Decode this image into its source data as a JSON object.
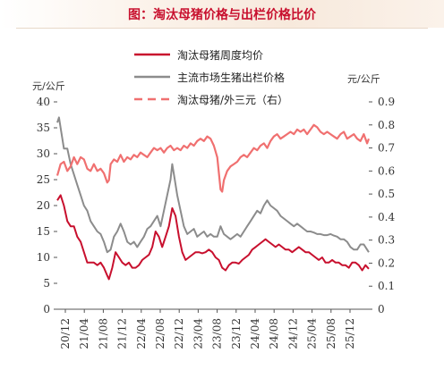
{
  "header": {
    "title": "图：淘汰母猪价格与出栏价格比价"
  },
  "chart_data": {
    "type": "line",
    "title": "图：淘汰母猪价格与出栏价格比价",
    "left_unit": "元/公斤",
    "right_unit": "元/公斤",
    "xlabel": "",
    "ylabel": "元/公斤",
    "ylim": [
      0,
      40
    ],
    "y2lim": [
      0,
      0.9
    ],
    "yticks": [
      "0",
      "5",
      "10",
      "15",
      "20",
      "25",
      "30",
      "35",
      "40"
    ],
    "y2ticks": [
      "0",
      "0.1",
      "0.2",
      "0.3",
      "0.4",
      "0.5",
      "0.6",
      "0.7",
      "0.8",
      "0.9"
    ],
    "xticks": [
      "20/12",
      "21/04",
      "21/08",
      "21/12",
      "22/04",
      "22/08",
      "22/12",
      "23/04",
      "23/08",
      "23/12",
      "24/04",
      "24/08",
      "24/12",
      "25/04",
      "25/08",
      "25/12"
    ],
    "legend_position": "top-center",
    "grid": false,
    "colors": {
      "sow": "#c8102e",
      "hog": "#8c8c8c",
      "ratio": "#f07070"
    },
    "series": [
      {
        "name": "淘汰母猪周度均价",
        "axis": "left",
        "style": "solid",
        "color": "#c8102e",
        "points": [
          [
            0,
            21
          ],
          [
            2,
            22
          ],
          [
            4,
            20
          ],
          [
            6,
            17
          ],
          [
            8,
            16
          ],
          [
            10,
            16
          ],
          [
            12,
            14
          ],
          [
            14,
            13
          ],
          [
            16,
            11
          ],
          [
            18,
            9
          ],
          [
            20,
            9
          ],
          [
            22,
            9
          ],
          [
            24,
            8.5
          ],
          [
            26,
            9
          ],
          [
            28,
            8
          ],
          [
            30,
            6.5
          ],
          [
            31,
            5.8
          ],
          [
            33,
            8
          ],
          [
            35,
            11
          ],
          [
            37,
            10
          ],
          [
            39,
            9
          ],
          [
            41,
            8.5
          ],
          [
            43,
            9
          ],
          [
            45,
            8
          ],
          [
            47,
            8
          ],
          [
            49,
            8.5
          ],
          [
            51,
            9.5
          ],
          [
            53,
            10
          ],
          [
            55,
            10.5
          ],
          [
            57,
            12
          ],
          [
            59,
            15
          ],
          [
            61,
            14
          ],
          [
            63,
            12
          ],
          [
            65,
            14
          ],
          [
            67,
            16
          ],
          [
            69,
            19.5
          ],
          [
            71,
            18
          ],
          [
            73,
            14
          ],
          [
            75,
            11
          ],
          [
            77,
            9.5
          ],
          [
            79,
            10
          ],
          [
            81,
            10.5
          ],
          [
            83,
            11
          ],
          [
            85,
            11
          ],
          [
            87,
            10.8
          ],
          [
            89,
            11
          ],
          [
            91,
            11.5
          ],
          [
            93,
            11
          ],
          [
            95,
            10
          ],
          [
            97,
            9.5
          ],
          [
            99,
            8
          ],
          [
            101,
            7.5
          ],
          [
            103,
            8.5
          ],
          [
            105,
            9
          ],
          [
            107,
            9
          ],
          [
            109,
            8.8
          ],
          [
            111,
            9.5
          ],
          [
            113,
            10
          ],
          [
            115,
            10.5
          ],
          [
            117,
            11.5
          ],
          [
            119,
            12
          ],
          [
            121,
            12.5
          ],
          [
            123,
            13
          ],
          [
            125,
            13.5
          ],
          [
            127,
            13
          ],
          [
            129,
            12.5
          ],
          [
            131,
            12
          ],
          [
            133,
            12.5
          ],
          [
            135,
            12
          ],
          [
            137,
            11.5
          ],
          [
            139,
            11.5
          ],
          [
            141,
            11
          ],
          [
            143,
            11.5
          ],
          [
            145,
            12
          ],
          [
            147,
            11.5
          ],
          [
            149,
            11
          ],
          [
            151,
            11
          ],
          [
            153,
            10.5
          ],
          [
            155,
            10
          ],
          [
            157,
            9.5
          ],
          [
            159,
            10
          ],
          [
            161,
            9
          ],
          [
            163,
            9
          ],
          [
            165,
            9.5
          ],
          [
            167,
            9
          ],
          [
            169,
            9
          ],
          [
            171,
            8.5
          ],
          [
            173,
            8.5
          ],
          [
            175,
            8
          ],
          [
            177,
            9
          ],
          [
            179,
            9
          ],
          [
            181,
            8.5
          ],
          [
            183,
            7.5
          ],
          [
            185,
            8.5
          ],
          [
            187,
            7.8
          ]
        ]
      },
      {
        "name": "主流市场生猪出栏价格",
        "axis": "left",
        "style": "solid",
        "color": "#8c8c8c",
        "points": [
          [
            0,
            36
          ],
          [
            1,
            37
          ],
          [
            2,
            35
          ],
          [
            4,
            31
          ],
          [
            6,
            31
          ],
          [
            8,
            28
          ],
          [
            10,
            26
          ],
          [
            12,
            24
          ],
          [
            14,
            22
          ],
          [
            16,
            20
          ],
          [
            18,
            19
          ],
          [
            20,
            17
          ],
          [
            22,
            16
          ],
          [
            24,
            15
          ],
          [
            26,
            14.5
          ],
          [
            28,
            13
          ],
          [
            30,
            11
          ],
          [
            32,
            11.5
          ],
          [
            34,
            14
          ],
          [
            36,
            15
          ],
          [
            38,
            16.5
          ],
          [
            40,
            15
          ],
          [
            42,
            13
          ],
          [
            44,
            12.5
          ],
          [
            46,
            13
          ],
          [
            48,
            12
          ],
          [
            50,
            13
          ],
          [
            52,
            14
          ],
          [
            54,
            15.5
          ],
          [
            56,
            16
          ],
          [
            58,
            17
          ],
          [
            60,
            18
          ],
          [
            62,
            16
          ],
          [
            64,
            19
          ],
          [
            66,
            22
          ],
          [
            68,
            25
          ],
          [
            69,
            28
          ],
          [
            70,
            26
          ],
          [
            72,
            22
          ],
          [
            74,
            19
          ],
          [
            76,
            16
          ],
          [
            78,
            14.5
          ],
          [
            80,
            15
          ],
          [
            82,
            15.5
          ],
          [
            84,
            14
          ],
          [
            86,
            14.5
          ],
          [
            88,
            15
          ],
          [
            90,
            14
          ],
          [
            92,
            14.5
          ],
          [
            94,
            14
          ],
          [
            96,
            14
          ],
          [
            98,
            16
          ],
          [
            100,
            14.5
          ],
          [
            102,
            14
          ],
          [
            104,
            13.5
          ],
          [
            106,
            14
          ],
          [
            108,
            14.5
          ],
          [
            110,
            14
          ],
          [
            112,
            15
          ],
          [
            114,
            16
          ],
          [
            116,
            17
          ],
          [
            118,
            18
          ],
          [
            120,
            19
          ],
          [
            122,
            18.5
          ],
          [
            124,
            20
          ],
          [
            126,
            21
          ],
          [
            128,
            20
          ],
          [
            130,
            19.5
          ],
          [
            132,
            19
          ],
          [
            134,
            18
          ],
          [
            136,
            17.5
          ],
          [
            138,
            17
          ],
          [
            140,
            16.5
          ],
          [
            142,
            16
          ],
          [
            144,
            16.5
          ],
          [
            146,
            16
          ],
          [
            148,
            15.5
          ],
          [
            150,
            15
          ],
          [
            152,
            15
          ],
          [
            154,
            14.8
          ],
          [
            156,
            14.5
          ],
          [
            158,
            14.5
          ],
          [
            160,
            14.3
          ],
          [
            162,
            14.3
          ],
          [
            164,
            14.5
          ],
          [
            166,
            14.2
          ],
          [
            168,
            14
          ],
          [
            170,
            13.5
          ],
          [
            172,
            13.5
          ],
          [
            174,
            13
          ],
          [
            176,
            12
          ],
          [
            178,
            11.5
          ],
          [
            180,
            11.5
          ],
          [
            182,
            12.5
          ],
          [
            184,
            12.5
          ],
          [
            186,
            11.5
          ],
          [
            187,
            11
          ]
        ]
      },
      {
        "name": "淘汰母猪/外三元（右）",
        "axis": "right",
        "style": "dashed",
        "color": "#f07070",
        "points": [
          [
            0,
            0.58
          ],
          [
            2,
            0.63
          ],
          [
            4,
            0.64
          ],
          [
            6,
            0.6
          ],
          [
            8,
            0.62
          ],
          [
            10,
            0.66
          ],
          [
            12,
            0.63
          ],
          [
            14,
            0.66
          ],
          [
            16,
            0.65
          ],
          [
            18,
            0.61
          ],
          [
            20,
            0.6
          ],
          [
            22,
            0.63
          ],
          [
            24,
            0.6
          ],
          [
            26,
            0.61
          ],
          [
            28,
            0.59
          ],
          [
            30,
            0.55
          ],
          [
            31,
            0.56
          ],
          [
            32,
            0.63
          ],
          [
            34,
            0.65
          ],
          [
            36,
            0.64
          ],
          [
            38,
            0.67
          ],
          [
            40,
            0.64
          ],
          [
            42,
            0.66
          ],
          [
            44,
            0.65
          ],
          [
            46,
            0.67
          ],
          [
            48,
            0.66
          ],
          [
            50,
            0.68
          ],
          [
            52,
            0.67
          ],
          [
            54,
            0.66
          ],
          [
            56,
            0.68
          ],
          [
            58,
            0.7
          ],
          [
            60,
            0.69
          ],
          [
            62,
            0.7
          ],
          [
            64,
            0.68
          ],
          [
            66,
            0.7
          ],
          [
            68,
            0.71
          ],
          [
            70,
            0.69
          ],
          [
            72,
            0.7
          ],
          [
            74,
            0.69
          ],
          [
            76,
            0.71
          ],
          [
            78,
            0.7
          ],
          [
            80,
            0.72
          ],
          [
            82,
            0.71
          ],
          [
            84,
            0.73
          ],
          [
            86,
            0.74
          ],
          [
            88,
            0.73
          ],
          [
            90,
            0.75
          ],
          [
            92,
            0.74
          ],
          [
            94,
            0.71
          ],
          [
            96,
            0.66
          ],
          [
            98,
            0.52
          ],
          [
            99,
            0.51
          ],
          [
            100,
            0.56
          ],
          [
            102,
            0.6
          ],
          [
            104,
            0.62
          ],
          [
            106,
            0.63
          ],
          [
            108,
            0.64
          ],
          [
            110,
            0.66
          ],
          [
            112,
            0.67
          ],
          [
            114,
            0.66
          ],
          [
            116,
            0.68
          ],
          [
            118,
            0.7
          ],
          [
            120,
            0.69
          ],
          [
            122,
            0.71
          ],
          [
            124,
            0.72
          ],
          [
            126,
            0.7
          ],
          [
            128,
            0.73
          ],
          [
            130,
            0.75
          ],
          [
            132,
            0.76
          ],
          [
            134,
            0.74
          ],
          [
            136,
            0.75
          ],
          [
            138,
            0.76
          ],
          [
            140,
            0.77
          ],
          [
            142,
            0.76
          ],
          [
            144,
            0.78
          ],
          [
            146,
            0.77
          ],
          [
            148,
            0.78
          ],
          [
            150,
            0.76
          ],
          [
            152,
            0.78
          ],
          [
            154,
            0.8
          ],
          [
            156,
            0.79
          ],
          [
            158,
            0.77
          ],
          [
            160,
            0.76
          ],
          [
            162,
            0.77
          ],
          [
            164,
            0.76
          ],
          [
            166,
            0.75
          ],
          [
            168,
            0.74
          ],
          [
            170,
            0.76
          ],
          [
            172,
            0.77
          ],
          [
            174,
            0.74
          ],
          [
            176,
            0.75
          ],
          [
            178,
            0.76
          ],
          [
            180,
            0.74
          ],
          [
            182,
            0.73
          ],
          [
            184,
            0.76
          ],
          [
            186,
            0.72
          ],
          [
            187,
            0.74
          ]
        ]
      }
    ]
  }
}
